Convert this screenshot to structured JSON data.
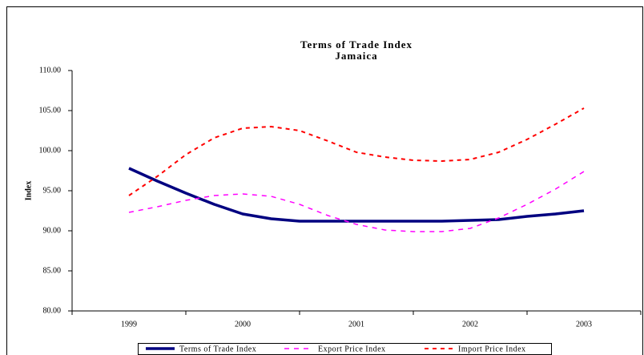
{
  "chart_data": {
    "type": "line",
    "title": "Terms of Trade Index",
    "subtitle": "Jamaica",
    "y_label": "Index",
    "categories": [
      "1999",
      null,
      null,
      null,
      "2000",
      null,
      null,
      null,
      "2001",
      null,
      null,
      null,
      "2002",
      null,
      null,
      null,
      "2003"
    ],
    "series": [
      {
        "name": "Terms of Trade Index",
        "color": "#000080",
        "values": [
          97.8,
          96.2,
          94.7,
          93.3,
          92.1,
          91.5,
          91.2,
          91.2,
          91.2,
          91.2,
          91.2,
          91.2,
          91.3,
          91.4,
          91.8,
          92.1,
          92.5
        ]
      },
      {
        "name": "Export Price Index",
        "color": "#ff00ff",
        "values": [
          92.3,
          93.0,
          93.8,
          94.4,
          94.6,
          94.3,
          93.3,
          91.9,
          90.8,
          90.1,
          89.9,
          89.9,
          90.3,
          91.6,
          93.3,
          95.2,
          97.4
        ]
      },
      {
        "name": "Import Price Index",
        "color": "#ff0000",
        "values": [
          94.4,
          96.8,
          99.5,
          101.6,
          102.8,
          103.0,
          102.5,
          101.2,
          99.8,
          99.2,
          98.8,
          98.7,
          98.9,
          99.8,
          101.4,
          103.3,
          105.3
        ]
      }
    ],
    "ylim": [
      80,
      110
    ],
    "yticks": [
      {
        "value": 80,
        "label": "80.00"
      },
      {
        "value": 85,
        "label": "85.00"
      },
      {
        "value": 90,
        "label": "90.00"
      },
      {
        "value": 95,
        "label": "95.00"
      },
      {
        "value": 100,
        "label": "100.00"
      },
      {
        "value": 105,
        "label": "105.00"
      },
      {
        "value": 110,
        "label": "110.00"
      }
    ],
    "legend": "bottom"
  }
}
